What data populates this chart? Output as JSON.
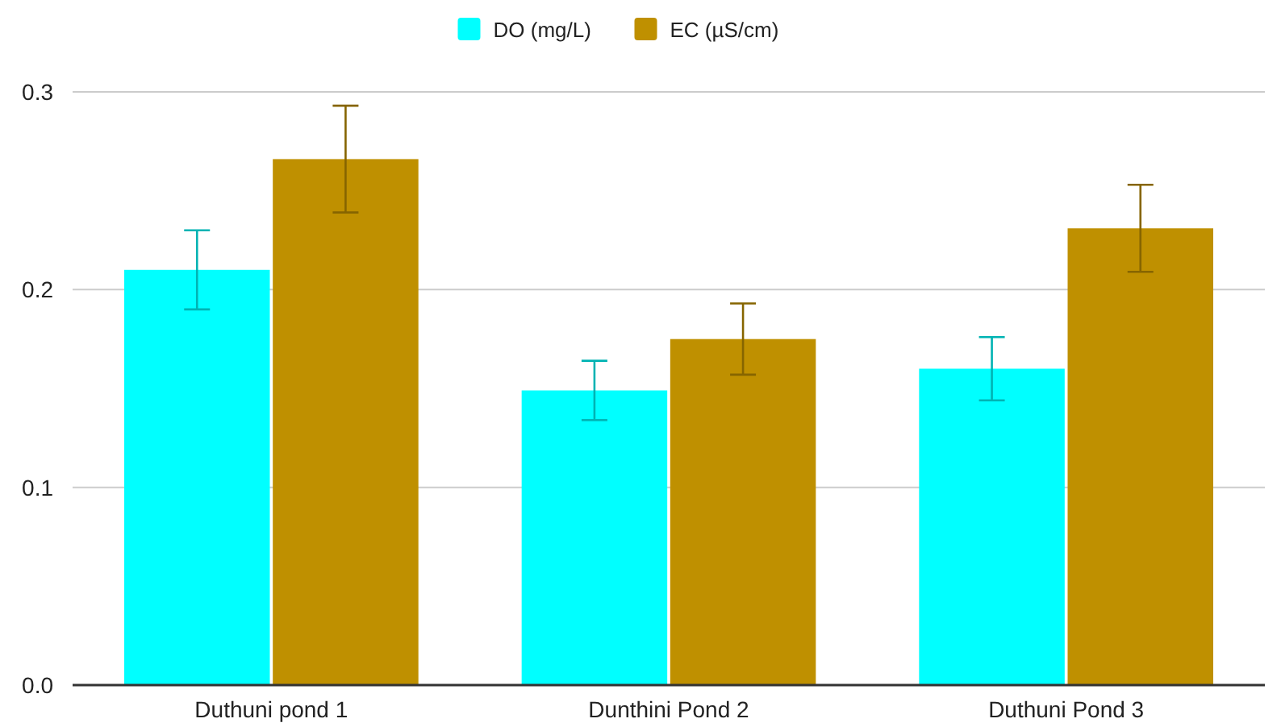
{
  "chart_data": {
    "type": "bar",
    "categories": [
      "Duthuni pond 1",
      "Dunthini Pond 2",
      "Duthuni Pond 3"
    ],
    "series": [
      {
        "name": "DO (mg/L)",
        "color": "#00ffff",
        "values": [
          0.21,
          0.149,
          0.16
        ],
        "errors": [
          0.02,
          0.015,
          0.016
        ]
      },
      {
        "name": "EC (µS/cm)",
        "color": "#bf9000",
        "values": [
          0.266,
          0.175,
          0.231
        ],
        "errors": [
          0.027,
          0.018,
          0.022
        ]
      }
    ],
    "ylim": [
      0,
      0.3
    ],
    "yticks": [
      {
        "value": 0,
        "label": "0.0"
      },
      0.1,
      0.2,
      0.3
    ],
    "grid": "y",
    "legend": "top"
  }
}
